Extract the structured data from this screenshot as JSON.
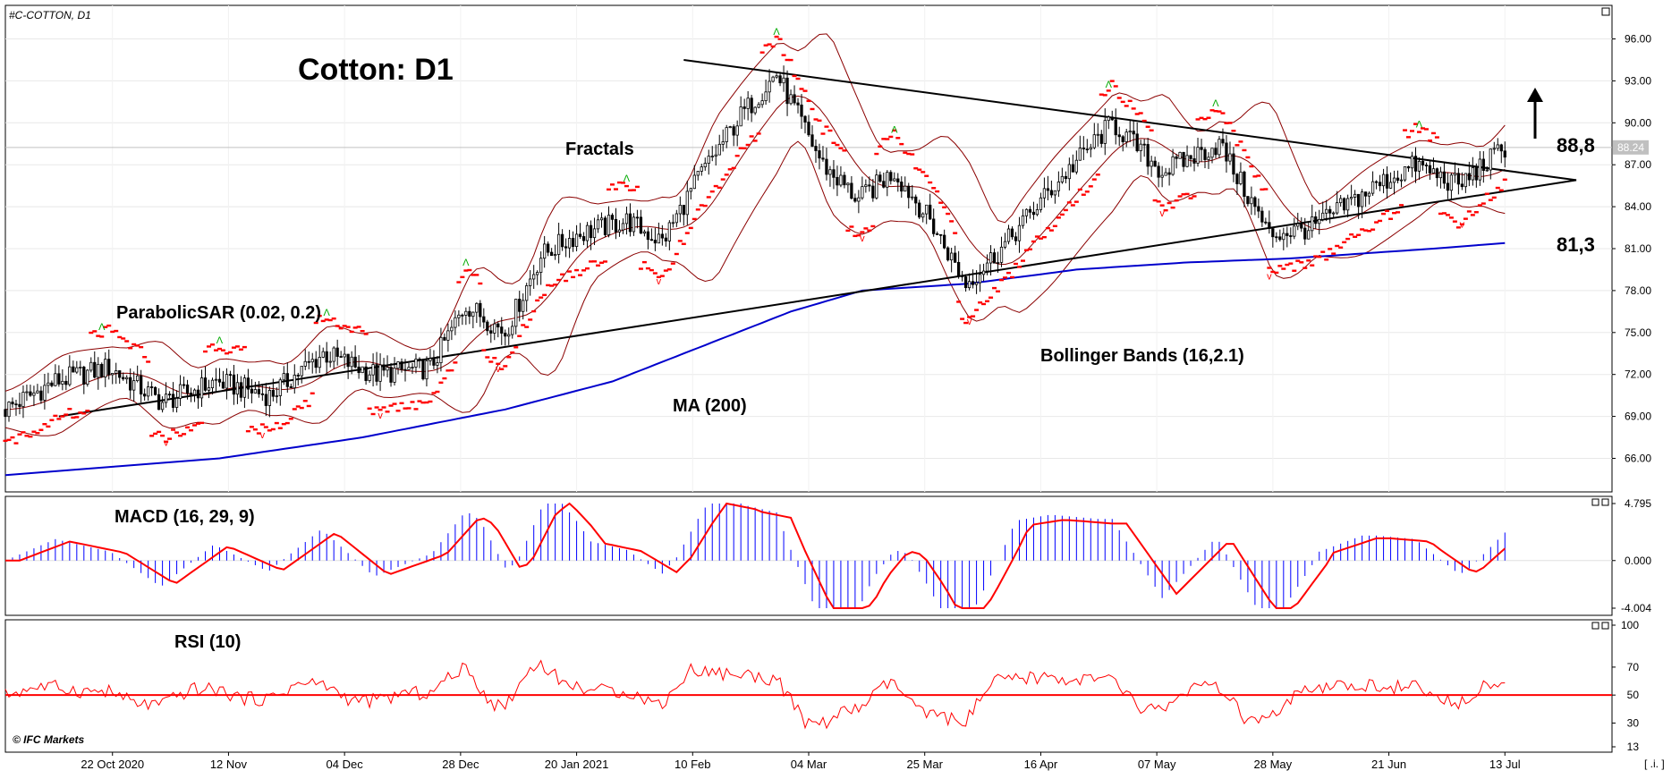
{
  "symbol": "#C-COTTON, D1",
  "title": "Cotton: D1",
  "watermark": "© IFC Markets",
  "corner_label": "[ .i. ]",
  "indicators": {
    "fractals": "Fractals",
    "psar": "ParabolicSAR (0.02, 0.2)",
    "ma": "MA (200)",
    "bb": "Bollinger Bands (16,2.1)",
    "macd": "MACD (16, 29, 9)",
    "rsi": "RSI (10)"
  },
  "levels": {
    "resistance": "88,8",
    "support": "81,3",
    "current_price": "88.24"
  },
  "colors": {
    "up_candle": "#ffffff",
    "down_candle": "#000000",
    "ma": "#0000cc",
    "bb": "#8b0000",
    "psar": "#ff0000",
    "macd_hist": "#0000ff",
    "macd_signal": "#ff0000",
    "rsi": "#ff0000",
    "fractal_up": "#00aa00",
    "fractal_down": "#ff0000"
  },
  "chart_data": {
    "type": "candlestick",
    "x_ticks": [
      "22 Oct 2020",
      "12 Nov",
      "04 Dec",
      "28 Dec",
      "20 Jan 2021",
      "10 Feb",
      "04 Mar",
      "25 Mar",
      "16 Apr",
      "07 May",
      "28 May",
      "21 Jun",
      "13 Jul"
    ],
    "price_axis": {
      "ticks": [
        "96.00",
        "93.00",
        "90.00",
        "87.00",
        "84.00",
        "81.00",
        "78.00",
        "75.00",
        "72.00",
        "69.00",
        "66.00"
      ],
      "range": [
        63.6,
        98.4
      ]
    },
    "price_series": {
      "x": [
        0,
        14,
        29,
        44,
        59,
        74,
        89,
        104,
        119,
        129,
        140,
        150,
        160,
        174,
        184,
        194,
        206,
        216,
        229,
        239,
        249,
        259,
        269,
        279,
        292,
        310,
        324,
        340,
        354,
        366,
        384,
        395,
        407,
        420
      ],
      "close": [
        69.5,
        71.5,
        72.5,
        70.0,
        71.5,
        70.5,
        73.5,
        72.0,
        72.5,
        77.0,
        75.0,
        80.5,
        82.0,
        83.0,
        81.5,
        86.0,
        90.5,
        93.5,
        87.0,
        84.5,
        86.5,
        83.0,
        78.5,
        81.0,
        85.0,
        90.0,
        86.5,
        88.5,
        82.0,
        82.5,
        85.5,
        87.0,
        85.5,
        88.24
      ]
    },
    "ma200": {
      "x": [
        0,
        60,
        100,
        140,
        170,
        200,
        220,
        240,
        270,
        300,
        330,
        360,
        400,
        420
      ],
      "values": [
        64.8,
        66.0,
        67.5,
        69.5,
        71.5,
        74.5,
        76.5,
        78.0,
        78.5,
        79.5,
        80.0,
        80.3,
        81.0,
        81.4
      ]
    },
    "trendlines": [
      {
        "name": "support",
        "x": [
          15,
          440
        ],
        "y": [
          69.0,
          85.9
        ]
      },
      {
        "name": "resistance",
        "x": [
          190,
          440
        ],
        "y": [
          94.5,
          85.9
        ]
      }
    ],
    "macd_axis": {
      "ticks": [
        "4.795",
        "0.000",
        "-4.004"
      ],
      "range": [
        -4.004,
        4.795
      ]
    },
    "rsi_axis": {
      "ticks": [
        "100",
        "70",
        "50",
        "30",
        "13"
      ],
      "range": [
        13,
        100
      ],
      "level": 50
    },
    "x_range": [
      0,
      450
    ]
  }
}
